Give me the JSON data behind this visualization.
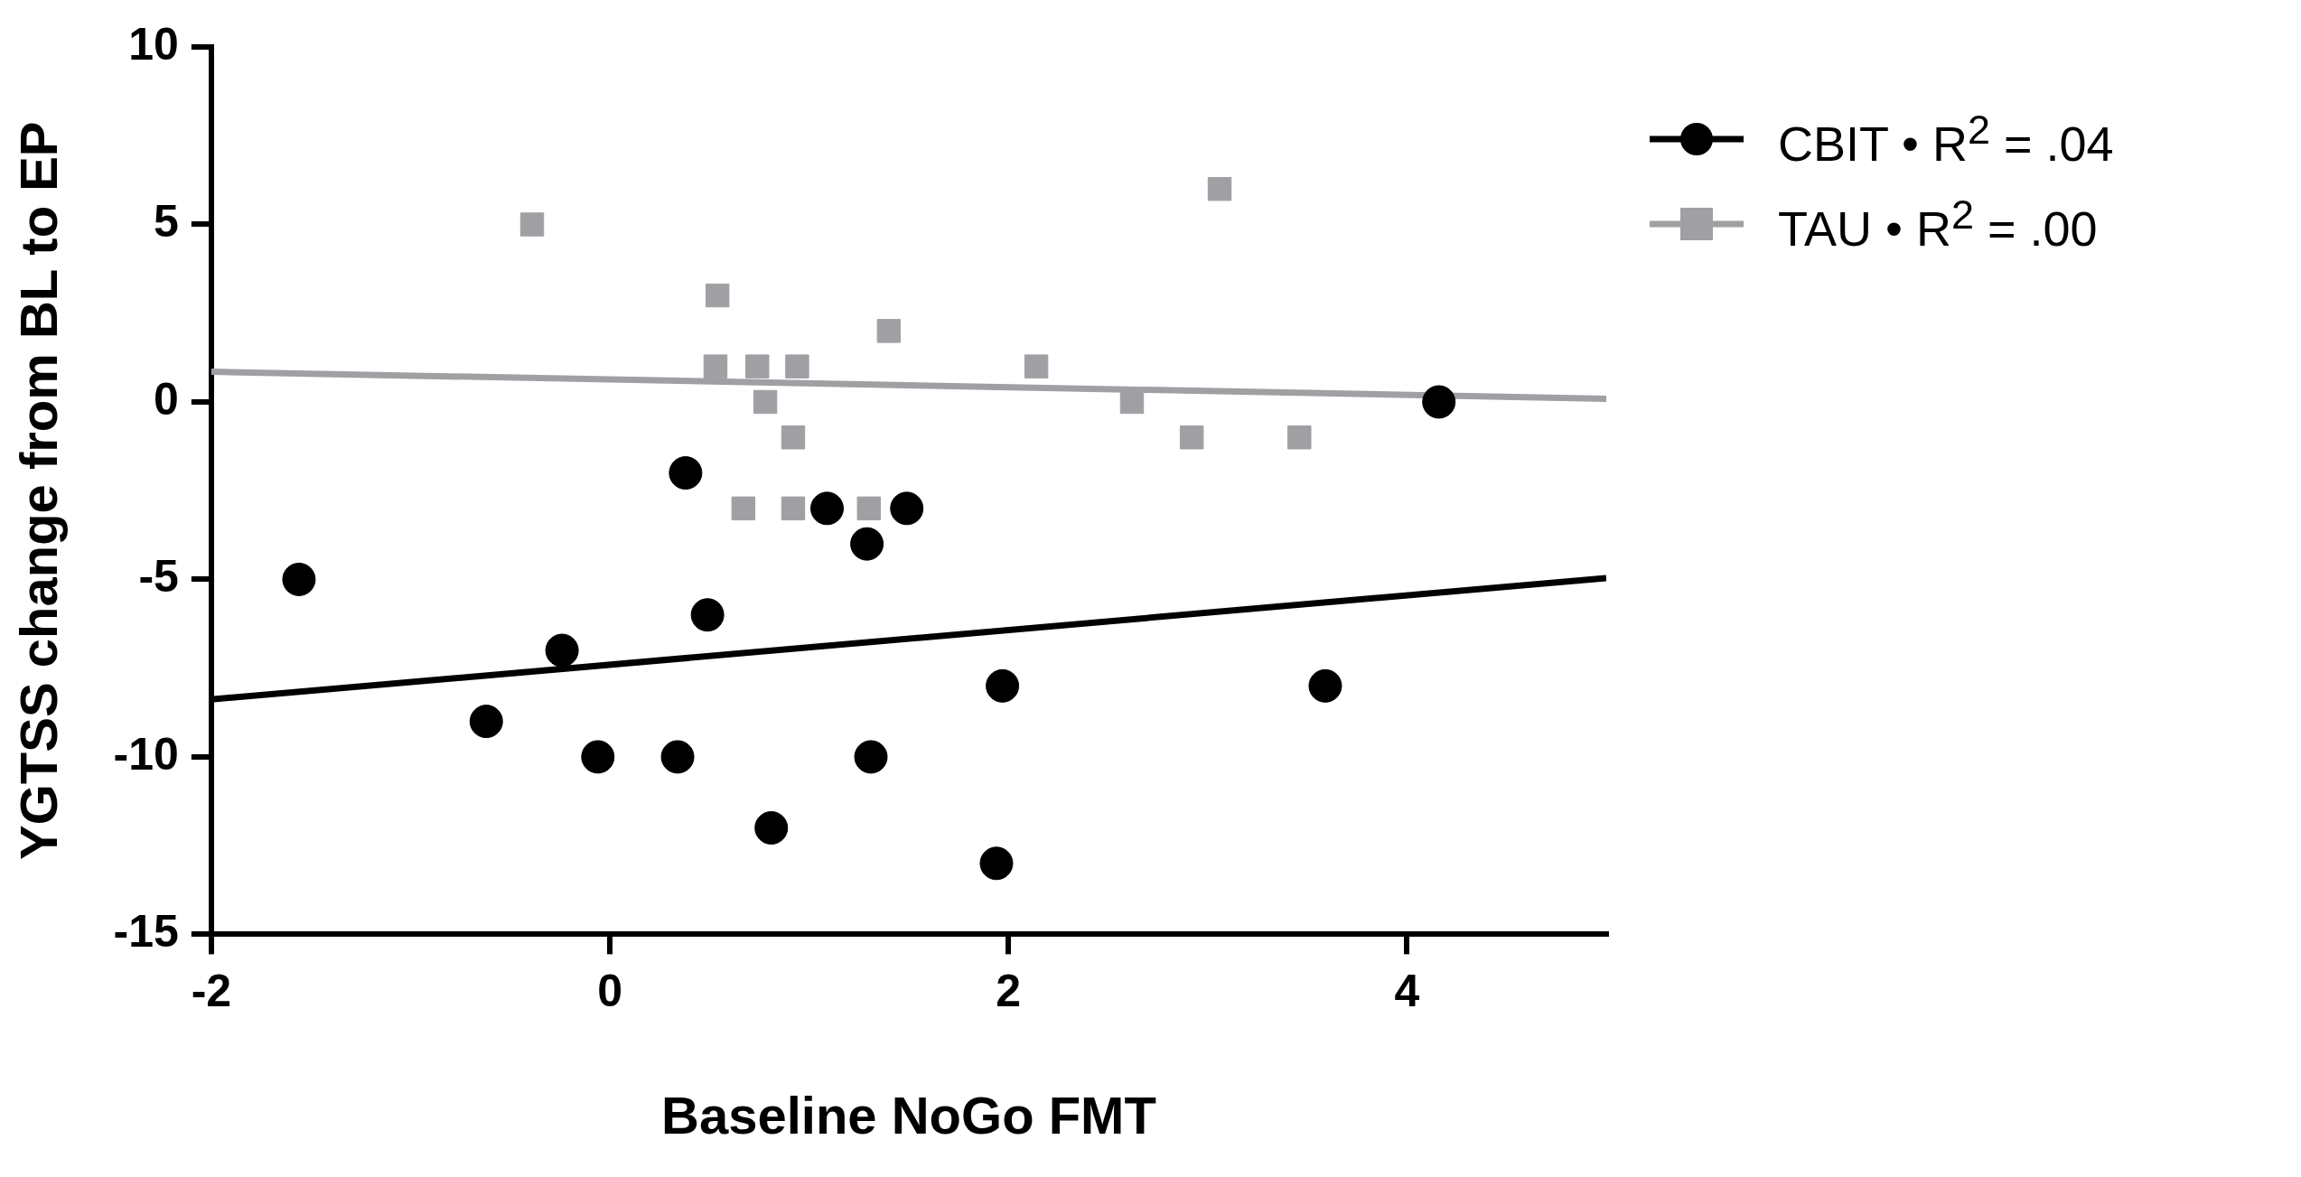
{
  "chart_data": {
    "type": "scatter",
    "xlabel": "Baseline NoGo FMT",
    "ylabel": "YGTSS change from BL to EP",
    "xlim": [
      -2,
      5
    ],
    "xticks": [
      -2,
      0,
      2,
      4
    ],
    "ylim": [
      -15,
      10
    ],
    "yticks": [
      -15,
      -10,
      -5,
      0,
      5,
      10
    ],
    "grid": false,
    "legend": "top right",
    "series": [
      {
        "name": "CBIT • R$^{2}$ = .04",
        "marker": "circle",
        "color": "#000000",
        "x": [
          -1.56,
          -0.62,
          -0.24,
          -0.06,
          0.34,
          0.38,
          0.49,
          0.81,
          1.09,
          1.29,
          1.31,
          1.49,
          1.97,
          1.94,
          3.59,
          4.16
        ],
        "values": [
          -5,
          -9,
          -7,
          -10,
          -10,
          -2,
          -6,
          -12,
          -3,
          -4,
          -10,
          -3,
          -8,
          -13,
          -8,
          0
        ]
      },
      {
        "name": "TAU • R$^{2}$ = .00",
        "marker": "square",
        "color": "#a0a0a4",
        "x": [
          -0.39,
          0.54,
          0.53,
          0.74,
          0.78,
          0.94,
          0.92,
          0.67,
          0.92,
          1.3,
          1.4,
          2.14,
          2.62,
          2.92,
          3.06,
          3.46
        ],
        "values": [
          5,
          3,
          1,
          1,
          0,
          1,
          -1,
          -3,
          -3,
          -3,
          2,
          1,
          0,
          -1,
          6,
          -1
        ]
      },
      {
        "type": "line",
        "marker": "none",
        "color": "#000000",
        "x": [
          -2,
          5
        ],
        "values": [
          -8.38,
          -4.96
        ]
      },
      {
        "type": "line",
        "marker": "none",
        "color": "#a0a0a4",
        "x": [
          -2,
          5
        ],
        "values": [
          0.85,
          0.09
        ]
      }
    ]
  }
}
